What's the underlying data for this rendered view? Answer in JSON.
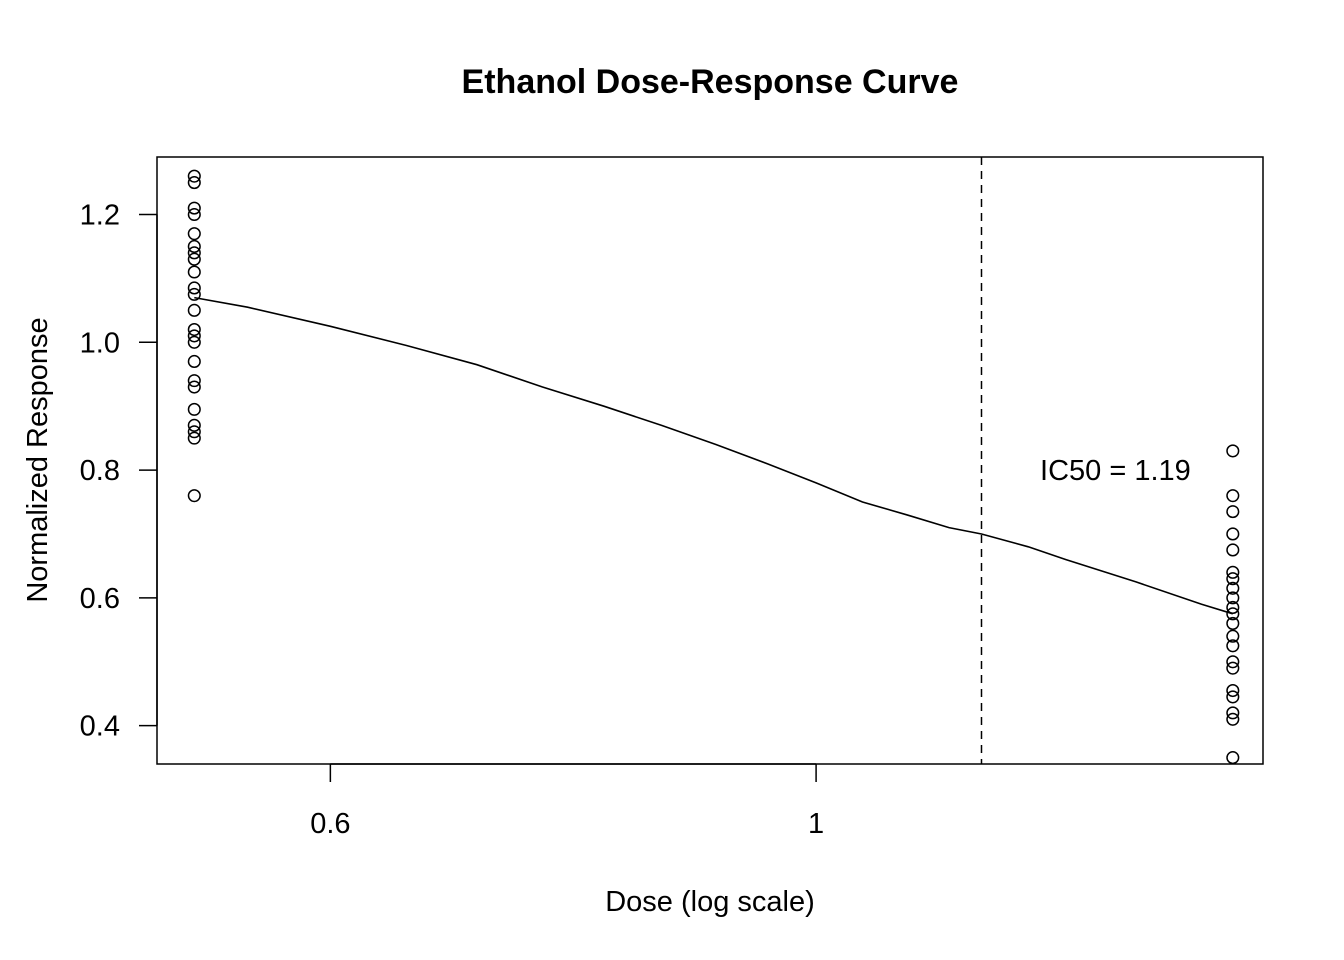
{
  "chart_data": {
    "type": "scatter",
    "title": "Ethanol Dose-Response Curve",
    "xlabel": "Dose (log scale)",
    "ylabel": "Normalized Response",
    "x_scale": "log",
    "xlim": [
      0.5,
      1.6
    ],
    "ylim": [
      0.34,
      1.29
    ],
    "x_ticks": [
      {
        "value": 0.6,
        "label": "0.6"
      },
      {
        "value": 1.0,
        "label": "1"
      }
    ],
    "y_ticks": [
      {
        "value": 0.4,
        "label": "0.4"
      },
      {
        "value": 0.6,
        "label": "0.6"
      },
      {
        "value": 0.8,
        "label": "0.8"
      },
      {
        "value": 1.0,
        "label": "1.0"
      },
      {
        "value": 1.2,
        "label": "1.2"
      }
    ],
    "grid": false,
    "legend": "none",
    "series": [
      {
        "type": "points",
        "points": [
          {
            "x": 0.52,
            "y": 1.26
          },
          {
            "x": 0.52,
            "y": 1.25
          },
          {
            "x": 0.52,
            "y": 1.21
          },
          {
            "x": 0.52,
            "y": 1.2
          },
          {
            "x": 0.52,
            "y": 1.17
          },
          {
            "x": 0.52,
            "y": 1.15
          },
          {
            "x": 0.52,
            "y": 1.14
          },
          {
            "x": 0.52,
            "y": 1.13
          },
          {
            "x": 0.52,
            "y": 1.11
          },
          {
            "x": 0.52,
            "y": 1.085
          },
          {
            "x": 0.52,
            "y": 1.075
          },
          {
            "x": 0.52,
            "y": 1.05
          },
          {
            "x": 0.52,
            "y": 1.02
          },
          {
            "x": 0.52,
            "y": 1.01
          },
          {
            "x": 0.52,
            "y": 1.0
          },
          {
            "x": 0.52,
            "y": 0.97
          },
          {
            "x": 0.52,
            "y": 0.94
          },
          {
            "x": 0.52,
            "y": 0.93
          },
          {
            "x": 0.52,
            "y": 0.895
          },
          {
            "x": 0.52,
            "y": 0.87
          },
          {
            "x": 0.52,
            "y": 0.86
          },
          {
            "x": 0.52,
            "y": 0.85
          },
          {
            "x": 0.52,
            "y": 0.76
          },
          {
            "x": 1.55,
            "y": 0.83
          },
          {
            "x": 1.55,
            "y": 0.76
          },
          {
            "x": 1.55,
            "y": 0.735
          },
          {
            "x": 1.55,
            "y": 0.7
          },
          {
            "x": 1.55,
            "y": 0.675
          },
          {
            "x": 1.55,
            "y": 0.64
          },
          {
            "x": 1.55,
            "y": 0.63
          },
          {
            "x": 1.55,
            "y": 0.615
          },
          {
            "x": 1.55,
            "y": 0.6
          },
          {
            "x": 1.55,
            "y": 0.585
          },
          {
            "x": 1.55,
            "y": 0.575
          },
          {
            "x": 1.55,
            "y": 0.56
          },
          {
            "x": 1.55,
            "y": 0.54
          },
          {
            "x": 1.55,
            "y": 0.525
          },
          {
            "x": 1.55,
            "y": 0.5
          },
          {
            "x": 1.55,
            "y": 0.49
          },
          {
            "x": 1.55,
            "y": 0.455
          },
          {
            "x": 1.55,
            "y": 0.445
          },
          {
            "x": 1.55,
            "y": 0.42
          },
          {
            "x": 1.55,
            "y": 0.41
          },
          {
            "x": 1.55,
            "y": 0.35
          }
        ]
      },
      {
        "type": "line",
        "points": [
          {
            "x": 0.52,
            "y": 1.07
          },
          {
            "x": 0.55,
            "y": 1.055
          },
          {
            "x": 0.6,
            "y": 1.025
          },
          {
            "x": 0.65,
            "y": 0.995
          },
          {
            "x": 0.7,
            "y": 0.965
          },
          {
            "x": 0.75,
            "y": 0.93
          },
          {
            "x": 0.8,
            "y": 0.9
          },
          {
            "x": 0.85,
            "y": 0.87
          },
          {
            "x": 0.9,
            "y": 0.84
          },
          {
            "x": 0.95,
            "y": 0.81
          },
          {
            "x": 1.0,
            "y": 0.78
          },
          {
            "x": 1.05,
            "y": 0.75
          },
          {
            "x": 1.1,
            "y": 0.73
          },
          {
            "x": 1.15,
            "y": 0.71
          },
          {
            "x": 1.19,
            "y": 0.7
          },
          {
            "x": 1.25,
            "y": 0.68
          },
          {
            "x": 1.3,
            "y": 0.66
          },
          {
            "x": 1.4,
            "y": 0.625
          },
          {
            "x": 1.5,
            "y": 0.59
          },
          {
            "x": 1.55,
            "y": 0.575
          }
        ]
      }
    ],
    "reference_line": {
      "orientation": "vertical",
      "x": 1.19,
      "style": "dashed"
    },
    "annotations": [
      {
        "text": "IC50 = 1.19",
        "x": 1.37,
        "y": 0.8
      }
    ]
  }
}
